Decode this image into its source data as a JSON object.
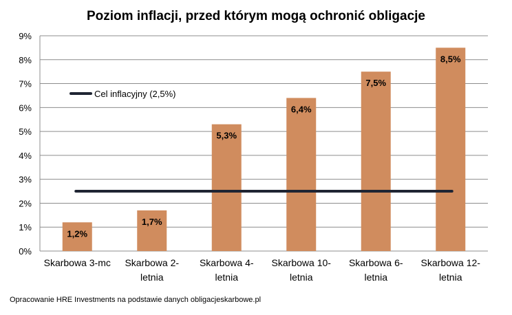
{
  "chart_data": {
    "type": "bar",
    "title": "Poziom inflacji, przed którym mogą ochronić obligacje",
    "categories": [
      [
        "Skarbowa 3-mc"
      ],
      [
        "Skarbowa 2-",
        "letnia"
      ],
      [
        "Skarbowa 4-",
        "letnia"
      ],
      [
        "Skarbowa 10-",
        "letnia"
      ],
      [
        "Skarbowa 6-",
        "letnia"
      ],
      [
        "Skarbowa 12-",
        "letnia"
      ]
    ],
    "values": [
      1.2,
      1.7,
      5.3,
      6.4,
      7.5,
      8.5
    ],
    "data_labels": [
      "1,2%",
      "1,7%",
      "5,3%",
      "6,4%",
      "7,5%",
      "8,5%"
    ],
    "bar_color": "#D08C5E",
    "ylim": [
      0,
      9
    ],
    "y_ticks": [
      "0%",
      "1%",
      "2%",
      "3%",
      "4%",
      "5%",
      "6%",
      "7%",
      "8%",
      "9%"
    ],
    "grid": true,
    "reference_line": {
      "name": "Cel inflacyjny (2,5%)",
      "value": 2.5,
      "color": "#1F2533"
    },
    "legend_position": "top-left"
  },
  "source_note": "Opracowanie HRE Investments na podstawie danych obligacjeskarbowe.pl"
}
